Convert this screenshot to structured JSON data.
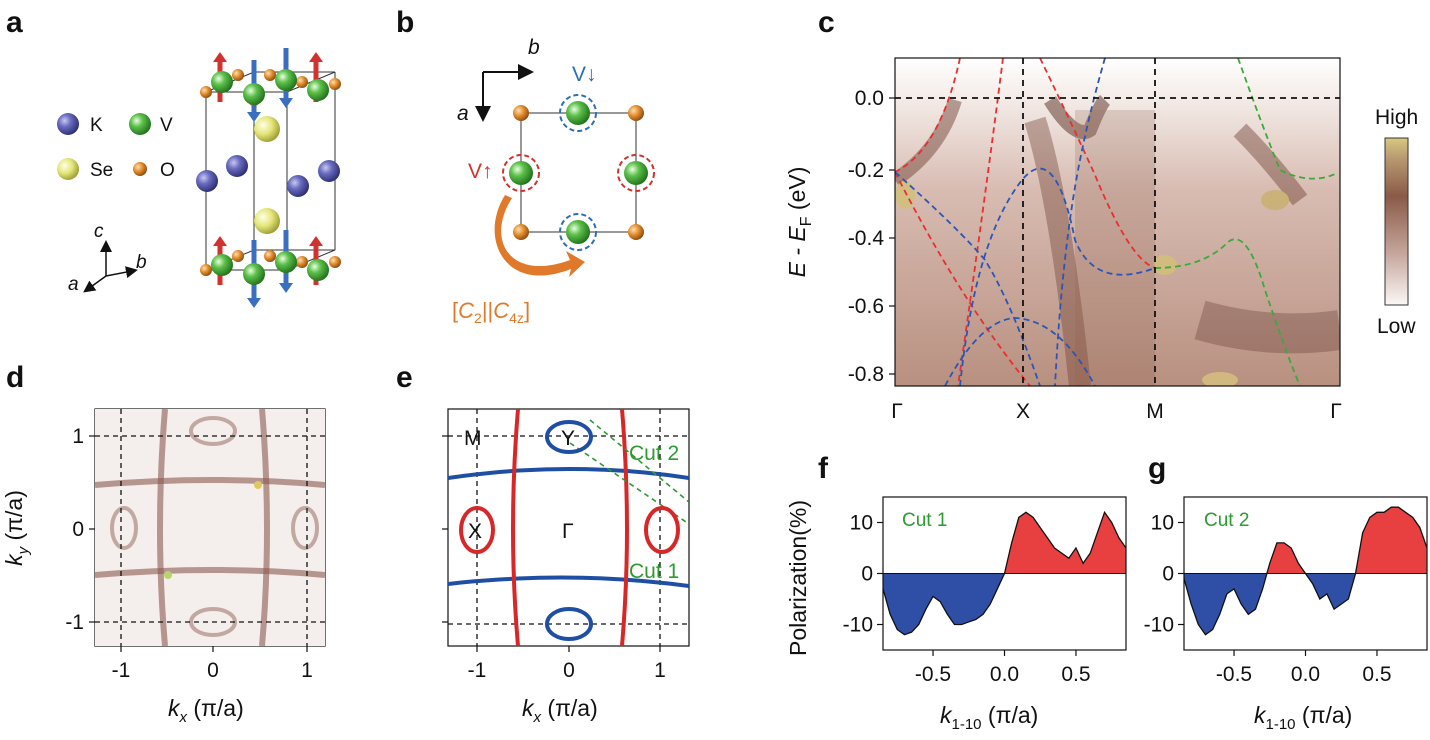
{
  "panels": {
    "a": "a",
    "b": "b",
    "c": "c",
    "d": "d",
    "e": "e",
    "f": "f",
    "g": "g"
  },
  "legend_a": {
    "k": "K",
    "v": "V",
    "se": "Se",
    "o": "O",
    "colors": {
      "K": "#5558b0",
      "V": "#48b046",
      "Se": "#e6e87a",
      "O": "#e08a2a"
    }
  },
  "axes_a": {
    "c": "c",
    "a": "a",
    "b": "b"
  },
  "panel_b": {
    "b_axis": "b",
    "a_axis": "a",
    "v_down": "V↓",
    "v_up": "V↑",
    "operator_pre": "[",
    "c2": "C",
    "c2_sub": "2",
    "sep": "||",
    "c4": "C",
    "c4_sub": "4z",
    "operator_post": "]"
  },
  "panel_c": {
    "ylabel_pre": "E - E",
    "ylabel_sub": "F",
    "ylabel_post": " (eV)",
    "yticks": [
      "0.0",
      "-0.2",
      "-0.4",
      "-0.6",
      "-0.8"
    ],
    "xticks": [
      "Γ",
      "X",
      "M",
      "Γ"
    ],
    "colorbar": {
      "high": "High",
      "low": "Low"
    }
  },
  "panel_d": {
    "xticks": [
      "-1",
      "0",
      "1"
    ],
    "yticks": [
      "1",
      "0",
      "-1"
    ],
    "xlabel_k": "k",
    "xlabel_sub": "x",
    "xlabel_unit": " (π/a)",
    "ylabel_k": "k",
    "ylabel_sub": "y",
    "ylabel_unit": " (π/a)"
  },
  "panel_e": {
    "M": "M",
    "Y": "Y",
    "X": "X",
    "Gamma": "Γ",
    "cut1": "Cut 1",
    "cut2": "Cut 2",
    "xticks": [
      "-1",
      "0",
      "1"
    ],
    "xlabel_k": "k",
    "xlabel_sub": "x",
    "xlabel_unit": " (π/a)"
  },
  "panel_fg": {
    "ylabel": "Polarization(%)",
    "yticks": [
      "10",
      "0",
      "-10"
    ],
    "xticks": [
      "-0.5",
      "0.0",
      "0.5"
    ],
    "xlabel_k": "k",
    "xlabel_sub": "1-10",
    "xlabel_unit": " (π/a)"
  },
  "chart_data": [
    {
      "type": "area",
      "panel": "f",
      "title": "Cut 1",
      "xlim": [
        -0.85,
        0.85
      ],
      "ylim": [
        -15,
        15
      ],
      "x": [
        -0.85,
        -0.8,
        -0.75,
        -0.7,
        -0.65,
        -0.6,
        -0.55,
        -0.5,
        -0.45,
        -0.4,
        -0.35,
        -0.3,
        -0.25,
        -0.2,
        -0.15,
        -0.1,
        -0.05,
        0.0,
        0.05,
        0.1,
        0.15,
        0.2,
        0.25,
        0.3,
        0.35,
        0.4,
        0.45,
        0.5,
        0.55,
        0.6,
        0.65,
        0.7,
        0.75,
        0.8,
        0.85
      ],
      "y": [
        -3,
        -8,
        -11,
        -12,
        -11.5,
        -10,
        -7,
        -4.5,
        -5.5,
        -8,
        -10,
        -10,
        -9.5,
        -9,
        -8,
        -6,
        -3,
        0,
        6,
        11,
        12,
        11,
        9,
        7,
        5,
        4,
        3,
        5,
        2,
        4,
        8,
        12,
        10,
        7,
        5
      ]
    },
    {
      "type": "area",
      "panel": "g",
      "title": "Cut 2",
      "xlim": [
        -0.85,
        0.85
      ],
      "ylim": [
        -15,
        15
      ],
      "x": [
        -0.85,
        -0.8,
        -0.75,
        -0.7,
        -0.65,
        -0.6,
        -0.55,
        -0.5,
        -0.45,
        -0.4,
        -0.35,
        -0.3,
        -0.25,
        -0.2,
        -0.15,
        -0.1,
        -0.05,
        0.0,
        0.05,
        0.1,
        0.15,
        0.2,
        0.25,
        0.3,
        0.35,
        0.4,
        0.45,
        0.5,
        0.55,
        0.6,
        0.65,
        0.7,
        0.75,
        0.8,
        0.85
      ],
      "y": [
        -1,
        -6,
        -10,
        -12,
        -11,
        -8,
        -4,
        -3,
        -6,
        -8,
        -7,
        -3,
        2,
        6,
        6,
        5,
        2,
        0,
        -2,
        -5,
        -4,
        -7,
        -6,
        -5,
        0,
        8,
        11,
        12,
        12,
        13,
        13,
        12,
        11,
        9,
        5
      ]
    }
  ]
}
